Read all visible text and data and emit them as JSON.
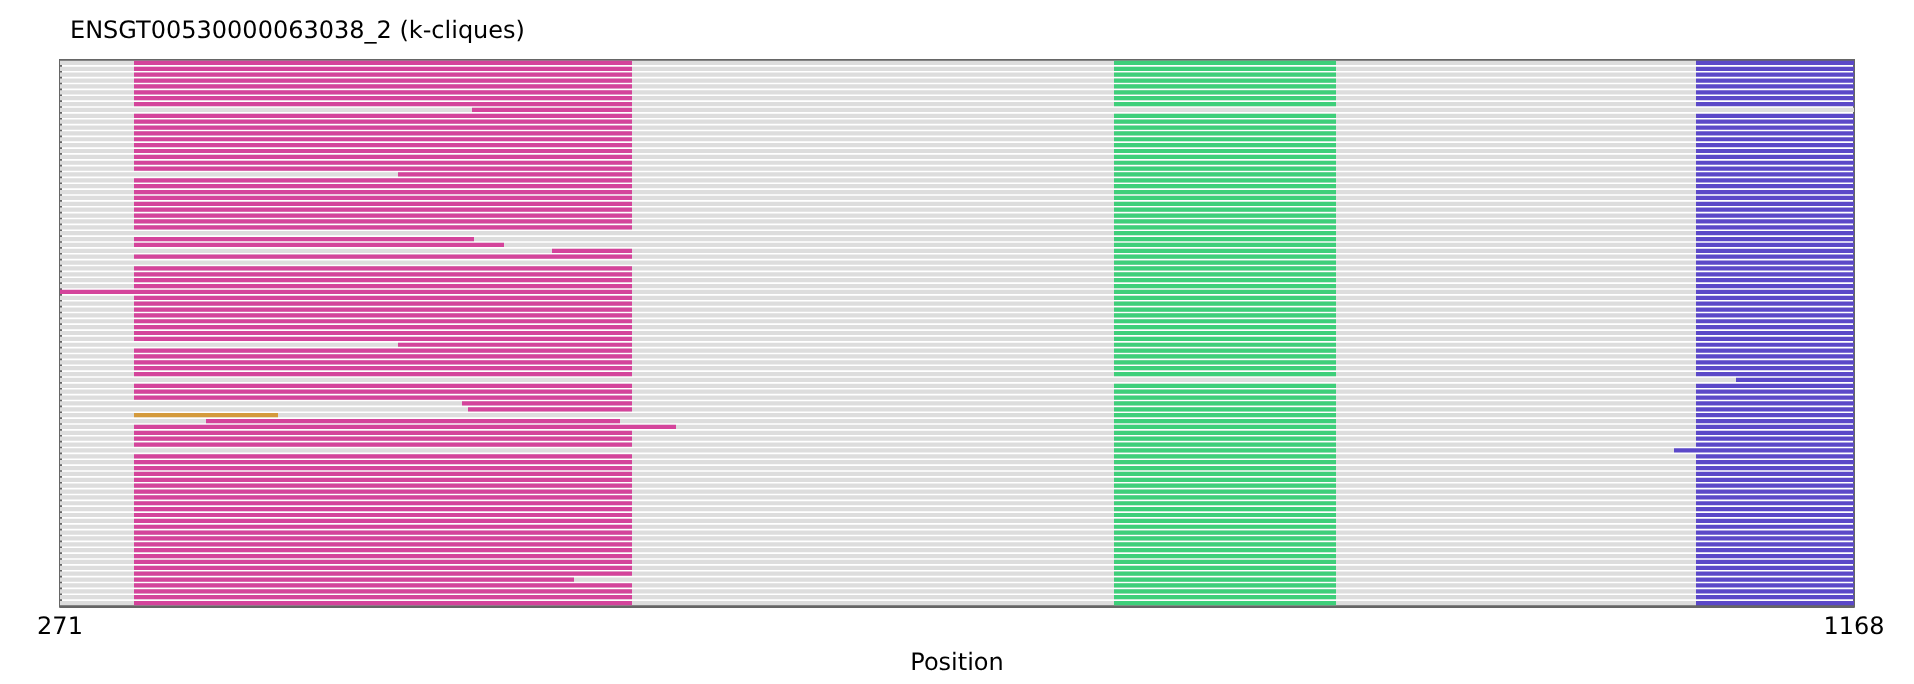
{
  "chart_data": {
    "type": "bar",
    "orientation": "horizontal",
    "title": "ENSGT00530000063038_2 (k-cliques)",
    "xlabel": "Position",
    "xlim": [
      271,
      1168
    ],
    "xticks": [
      271,
      1168
    ],
    "tick_labels": "x",
    "grid": false,
    "legend": false,
    "categories": [
      null,
      null,
      null,
      null,
      null,
      null,
      null,
      null,
      null,
      null,
      null,
      null,
      null,
      null,
      null,
      null,
      null,
      null,
      null,
      null,
      null,
      null,
      null,
      null,
      null,
      null,
      null,
      null,
      null,
      null,
      null,
      null,
      null,
      null,
      null,
      null,
      null,
      null,
      null,
      null,
      null,
      null,
      null,
      null,
      null,
      null,
      null,
      null,
      null,
      null,
      null,
      null,
      null,
      null,
      null,
      null,
      null,
      null,
      null,
      null,
      null,
      null,
      null,
      null,
      null,
      null,
      null,
      null,
      null,
      null,
      null,
      null,
      null,
      null,
      null,
      null,
      null,
      null,
      null,
      null,
      null,
      null,
      null,
      null,
      null,
      null,
      null,
      null,
      null,
      null,
      null,
      null,
      null
    ],
    "series": [
      {
        "color": "#dddddd",
        "base": [
          271,
          271,
          271,
          271,
          271,
          271,
          271,
          271,
          271,
          271,
          271,
          271,
          271,
          271,
          271,
          271,
          271,
          271,
          271,
          271,
          271,
          271,
          271,
          271,
          271,
          271,
          271,
          271,
          271,
          271,
          271,
          271,
          271,
          271,
          271,
          271,
          271,
          271,
          271,
          557,
          271,
          271,
          271,
          271,
          271,
          271,
          271,
          271,
          271,
          271,
          271,
          271,
          271,
          271,
          271,
          271,
          271,
          271,
          271,
          271,
          271,
          271,
          271,
          271,
          271,
          271,
          271,
          271,
          271,
          271,
          271,
          271,
          271,
          271,
          271,
          271,
          271,
          271,
          271,
          271,
          271,
          271,
          271,
          271,
          271,
          271,
          271,
          271,
          271,
          271,
          271,
          271,
          271
        ],
        "values": [
          818,
          818,
          818,
          818,
          818,
          818,
          818,
          818,
          897,
          818,
          818,
          818,
          818,
          818,
          818,
          818,
          818,
          818,
          818,
          818,
          818,
          818,
          818,
          818,
          818,
          818,
          818,
          818,
          818,
          818,
          818,
          818,
          818,
          818,
          818,
          818,
          818,
          818,
          818,
          532,
          818,
          818,
          818,
          818,
          818,
          818,
          818,
          818,
          818,
          818,
          818,
          818,
          818,
          818,
          838,
          818,
          818,
          818,
          818,
          818,
          818,
          818,
          818,
          818,
          818,
          818,
          807,
          818,
          818,
          818,
          818,
          818,
          818,
          818,
          818,
          818,
          818,
          818,
          818,
          818,
          818,
          818,
          818,
          818,
          818,
          818,
          818,
          818,
          818,
          818,
          818,
          818,
          818
        ]
      },
      {
        "color": "#d4449b",
        "base": [
          308,
          308,
          308,
          308,
          308,
          308,
          308,
          308,
          477,
          308,
          308,
          308,
          308,
          308,
          308,
          308,
          308,
          308,
          308,
          440,
          308,
          308,
          308,
          308,
          308,
          308,
          308,
          308,
          308,
          null,
          308,
          308,
          517,
          308,
          null,
          308,
          308,
          308,
          308,
          271,
          308,
          308,
          308,
          308,
          308,
          308,
          308,
          308,
          440,
          308,
          308,
          308,
          308,
          308,
          null,
          308,
          308,
          308,
          472,
          475,
          null,
          344,
          308,
          308,
          308,
          308,
          null,
          308,
          308,
          308,
          308,
          308,
          308,
          308,
          308,
          308,
          308,
          308,
          308,
          308,
          308,
          308,
          308,
          308,
          308,
          308,
          308,
          308,
          308,
          308,
          308,
          308,
          308
        ],
        "values": [
          249,
          249,
          249,
          249,
          249,
          249,
          249,
          249,
          80,
          249,
          249,
          249,
          249,
          249,
          249,
          249,
          249,
          249,
          249,
          117,
          249,
          249,
          249,
          249,
          249,
          249,
          249,
          249,
          249,
          null,
          170,
          185,
          40,
          249,
          null,
          249,
          249,
          249,
          249,
          286,
          249,
          249,
          249,
          249,
          249,
          249,
          249,
          249,
          117,
          249,
          249,
          249,
          249,
          249,
          null,
          249,
          249,
          249,
          85,
          82,
          null,
          207,
          271,
          249,
          249,
          249,
          null,
          249,
          249,
          249,
          249,
          249,
          249,
          249,
          249,
          249,
          249,
          249,
          249,
          249,
          249,
          249,
          249,
          249,
          249,
          249,
          249,
          249,
          220,
          249,
          249,
          249,
          249
        ]
      },
      {
        "color": "#d49a3c",
        "base": [
          null,
          null,
          null,
          null,
          null,
          null,
          null,
          null,
          null,
          null,
          null,
          null,
          null,
          null,
          null,
          null,
          null,
          null,
          null,
          null,
          null,
          null,
          null,
          null,
          null,
          null,
          null,
          null,
          null,
          null,
          null,
          null,
          null,
          null,
          null,
          null,
          null,
          null,
          null,
          null,
          null,
          null,
          null,
          null,
          null,
          null,
          null,
          null,
          null,
          null,
          null,
          null,
          null,
          null,
          null,
          null,
          null,
          null,
          null,
          null,
          308,
          null,
          null,
          null,
          null,
          null,
          null,
          null,
          null,
          null,
          null,
          null,
          null,
          null,
          null,
          null,
          null,
          null,
          null,
          null,
          null,
          null,
          null,
          null,
          null,
          null,
          null,
          null,
          null,
          null,
          null,
          null,
          null
        ],
        "values": [
          null,
          null,
          null,
          null,
          null,
          null,
          null,
          null,
          null,
          null,
          null,
          null,
          null,
          null,
          null,
          null,
          null,
          null,
          null,
          null,
          null,
          null,
          null,
          null,
          null,
          null,
          null,
          null,
          null,
          null,
          null,
          null,
          null,
          null,
          null,
          null,
          null,
          null,
          null,
          null,
          null,
          null,
          null,
          null,
          null,
          null,
          null,
          null,
          null,
          null,
          null,
          null,
          null,
          null,
          null,
          null,
          null,
          null,
          null,
          null,
          72,
          null,
          null,
          null,
          null,
          null,
          null,
          null,
          null,
          null,
          null,
          null,
          null,
          null,
          null,
          null,
          null,
          null,
          null,
          null,
          null,
          null,
          null,
          null,
          null,
          null,
          null,
          null,
          null,
          null,
          null,
          null,
          null
        ]
      },
      {
        "color": "#3ecf7a",
        "base": [
          798,
          798,
          798,
          798,
          798,
          798,
          798,
          798,
          null,
          798,
          798,
          798,
          798,
          798,
          798,
          798,
          798,
          798,
          798,
          798,
          798,
          798,
          798,
          798,
          798,
          798,
          798,
          798,
          798,
          798,
          798,
          798,
          798,
          798,
          798,
          798,
          798,
          798,
          798,
          798,
          798,
          798,
          798,
          798,
          798,
          798,
          798,
          798,
          798,
          798,
          798,
          798,
          798,
          798,
          null,
          798,
          798,
          798,
          798,
          798,
          798,
          798,
          798,
          798,
          798,
          798,
          798,
          798,
          798,
          798,
          798,
          798,
          798,
          798,
          798,
          798,
          798,
          798,
          798,
          798,
          798,
          798,
          798,
          798,
          798,
          798,
          798,
          798,
          798,
          798,
          798,
          798,
          798
        ],
        "values": [
          111,
          111,
          111,
          111,
          111,
          111,
          111,
          111,
          null,
          111,
          111,
          111,
          111,
          111,
          111,
          111,
          111,
          111,
          111,
          111,
          111,
          111,
          111,
          111,
          111,
          111,
          111,
          111,
          111,
          111,
          111,
          111,
          111,
          111,
          111,
          111,
          111,
          111,
          111,
          111,
          111,
          111,
          111,
          111,
          111,
          111,
          111,
          111,
          111,
          111,
          111,
          111,
          111,
          111,
          null,
          111,
          111,
          111,
          111,
          111,
          111,
          111,
          111,
          111,
          111,
          111,
          111,
          111,
          111,
          111,
          111,
          111,
          111,
          111,
          111,
          111,
          111,
          111,
          111,
          111,
          111,
          111,
          111,
          111,
          111,
          111,
          111,
          111,
          111,
          111,
          111,
          111,
          111
        ]
      },
      {
        "color": "#5b48c8",
        "base": [
          1089,
          1089,
          1089,
          1089,
          1089,
          1089,
          1089,
          1089,
          null,
          1089,
          1089,
          1089,
          1089,
          1089,
          1089,
          1089,
          1089,
          1089,
          1089,
          1089,
          1089,
          1089,
          1089,
          1089,
          1089,
          1089,
          1089,
          1089,
          1089,
          1089,
          1089,
          1089,
          1089,
          1089,
          1089,
          1089,
          1089,
          1089,
          1089,
          1089,
          1089,
          1089,
          1089,
          1089,
          1089,
          1089,
          1089,
          1089,
          1089,
          1089,
          1089,
          1089,
          1089,
          1089,
          1109,
          1089,
          1089,
          1089,
          1089,
          1089,
          1089,
          1089,
          1089,
          1089,
          1089,
          1089,
          1078,
          1089,
          1089,
          1089,
          1089,
          1089,
          1089,
          1089,
          1089,
          1089,
          1089,
          1089,
          1089,
          1089,
          1089,
          1089,
          1089,
          1089,
          1089,
          1089,
          1089,
          1089,
          1089,
          1089,
          1089,
          1089,
          1089
        ],
        "values": [
          79,
          79,
          79,
          79,
          79,
          79,
          79,
          79,
          null,
          79,
          79,
          79,
          79,
          79,
          79,
          79,
          79,
          79,
          79,
          79,
          79,
          79,
          79,
          79,
          79,
          79,
          79,
          79,
          79,
          79,
          79,
          79,
          79,
          79,
          79,
          79,
          79,
          79,
          79,
          79,
          79,
          79,
          79,
          79,
          79,
          79,
          79,
          79,
          79,
          79,
          79,
          79,
          79,
          79,
          59,
          79,
          79,
          79,
          79,
          79,
          79,
          79,
          79,
          79,
          79,
          79,
          90,
          79,
          79,
          79,
          79,
          79,
          79,
          79,
          79,
          79,
          79,
          79,
          79,
          79,
          79,
          79,
          79,
          79,
          79,
          79,
          79,
          79,
          79,
          79,
          79,
          79,
          79
        ]
      }
    ]
  }
}
